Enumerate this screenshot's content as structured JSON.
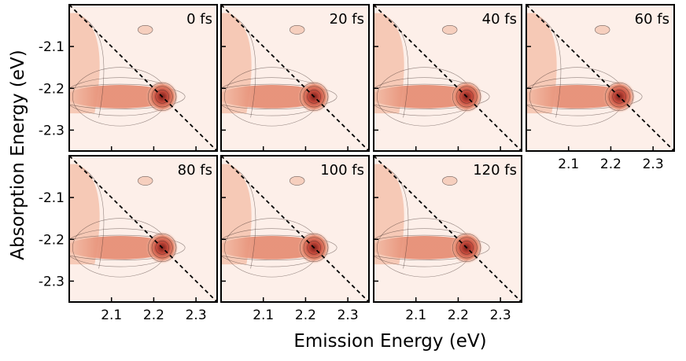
{
  "chart_data": {
    "type": "heatmap",
    "xlabel": "Emission Energy (eV)",
    "ylabel": "Absorption Energy (eV)",
    "xlim": [
      2.0,
      2.35
    ],
    "ylim": [
      -2.35,
      -2.0
    ],
    "x_ticks": [
      2.1,
      2.2,
      2.3
    ],
    "x_tick_labels": [
      "2.1",
      "2.2",
      "2.3"
    ],
    "y_ticks": [
      -2.1,
      -2.2,
      -2.3
    ],
    "y_tick_labels": [
      "-2.1",
      "-2.2",
      "-2.3"
    ],
    "diagonal_line": "dashed",
    "colormap": [
      "#fdefe9",
      "#f4c2ad",
      "#e58a70",
      "#c54a3c",
      "#7a1f1a"
    ],
    "panels": [
      {
        "label": "0 fs",
        "peak_emission": 2.22,
        "peak_absorption": -2.22
      },
      {
        "label": "20 fs",
        "peak_emission": 2.22,
        "peak_absorption": -2.22
      },
      {
        "label": "40 fs",
        "peak_emission": 2.22,
        "peak_absorption": -2.22
      },
      {
        "label": "60 fs",
        "peak_emission": 2.22,
        "peak_absorption": -2.22
      },
      {
        "label": "80 fs",
        "peak_emission": 2.22,
        "peak_absorption": -2.22
      },
      {
        "label": "100 fs",
        "peak_emission": 2.22,
        "peak_absorption": -2.22
      },
      {
        "label": "120 fs",
        "peak_emission": 2.22,
        "peak_absorption": -2.22
      }
    ]
  }
}
